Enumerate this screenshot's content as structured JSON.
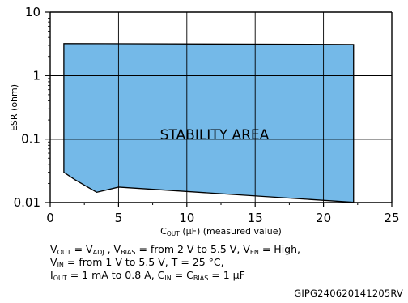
{
  "chart_data": {
    "type": "area",
    "title": "",
    "xlabel": "C_OUT (µF) (measured value)",
    "ylabel": "ESR (ohm)",
    "xlim": [
      0,
      25
    ],
    "ylim": [
      0.01,
      10
    ],
    "yscale": "log",
    "grid": true,
    "x_ticks": [
      "0",
      "5",
      "10",
      "15",
      "20",
      "25"
    ],
    "y_ticks": [
      "0.01",
      "0.1",
      "1",
      "10"
    ],
    "region": {
      "name": "STABILITY AREA",
      "color": "#74b9e8",
      "upper_boundary": {
        "x": [
          1,
          22.2
        ],
        "y": [
          3.2,
          3.1
        ]
      },
      "lower_boundary": {
        "x": [
          1,
          1.8,
          3.4,
          5,
          22.2
        ],
        "y": [
          0.03,
          0.023,
          0.0145,
          0.0175,
          0.0101
        ]
      }
    }
  },
  "labels": {
    "ylabel": "ESR (ohm)",
    "xlabel_main": "C",
    "xlabel_sub": "OUT",
    "xlabel_rest": " (µF) (measured value)",
    "region_label": "STABILITY AREA"
  },
  "conditions": {
    "line1": [
      {
        "t": "V"
      },
      {
        "s": "OUT"
      },
      {
        "t": " = V"
      },
      {
        "s": "ADJ"
      },
      {
        "t": " , V"
      },
      {
        "s": "BIAS"
      },
      {
        "t": " = from 2 V to 5.5 V, V"
      },
      {
        "s": "EN"
      },
      {
        "t": " = High,"
      }
    ],
    "line2": [
      {
        "t": "V"
      },
      {
        "s": "IN"
      },
      {
        "t": " = from 1 V to 5.5 V, T = 25 °C,"
      }
    ],
    "line3": [
      {
        "t": "I"
      },
      {
        "s": "OUT"
      },
      {
        "t": " = 1 mA to 0.8 A, C"
      },
      {
        "s": "IN"
      },
      {
        "t": " = C"
      },
      {
        "s": "BIAS"
      },
      {
        "t": " = 1 µF"
      }
    ]
  },
  "footer": {
    "code": "GIPG240620141205RV"
  }
}
